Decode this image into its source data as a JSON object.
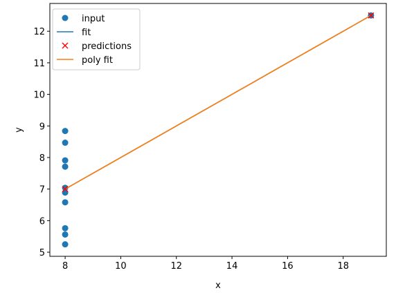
{
  "chart_data": {
    "type": "scatter",
    "xlabel": "x",
    "ylabel": "y",
    "xlim": [
      7.45,
      19.55
    ],
    "ylim": [
      4.87,
      12.88
    ],
    "xticks": [
      8,
      10,
      12,
      14,
      16,
      18
    ],
    "yticks": [
      5,
      6,
      7,
      8,
      9,
      10,
      11,
      12
    ],
    "grid": false,
    "legend_position": "top-left",
    "legend": [
      {
        "label": "input",
        "kind": "marker-circle",
        "color": "#1f77b4"
      },
      {
        "label": "fit",
        "kind": "line",
        "color": "#1f77b4"
      },
      {
        "label": "predictions",
        "kind": "marker-x",
        "color": "#ff0000"
      },
      {
        "label": "poly fit",
        "kind": "line",
        "color": "#ff7f0e"
      }
    ],
    "series": [
      {
        "name": "input",
        "kind": "scatter",
        "color": "#1f77b4",
        "points": [
          [
            8,
            8.84
          ],
          [
            8,
            8.47
          ],
          [
            8,
            7.91
          ],
          [
            8,
            7.71
          ],
          [
            8,
            7.04
          ],
          [
            8,
            6.89
          ],
          [
            8,
            6.58
          ],
          [
            8,
            5.76
          ],
          [
            8,
            5.56
          ],
          [
            8,
            5.25
          ],
          [
            19,
            12.5
          ]
        ]
      },
      {
        "name": "fit",
        "kind": "line",
        "color": "#1f77b4",
        "points": [
          [
            8,
            7.0
          ],
          [
            19,
            12.5
          ]
        ]
      },
      {
        "name": "predictions",
        "kind": "x-marker",
        "color": "#ff0000",
        "points": [
          [
            8,
            7.0
          ],
          [
            19,
            12.5
          ]
        ]
      },
      {
        "name": "poly fit",
        "kind": "line",
        "color": "#ff7f0e",
        "points": [
          [
            8,
            7.0
          ],
          [
            19,
            12.5
          ]
        ]
      }
    ]
  }
}
